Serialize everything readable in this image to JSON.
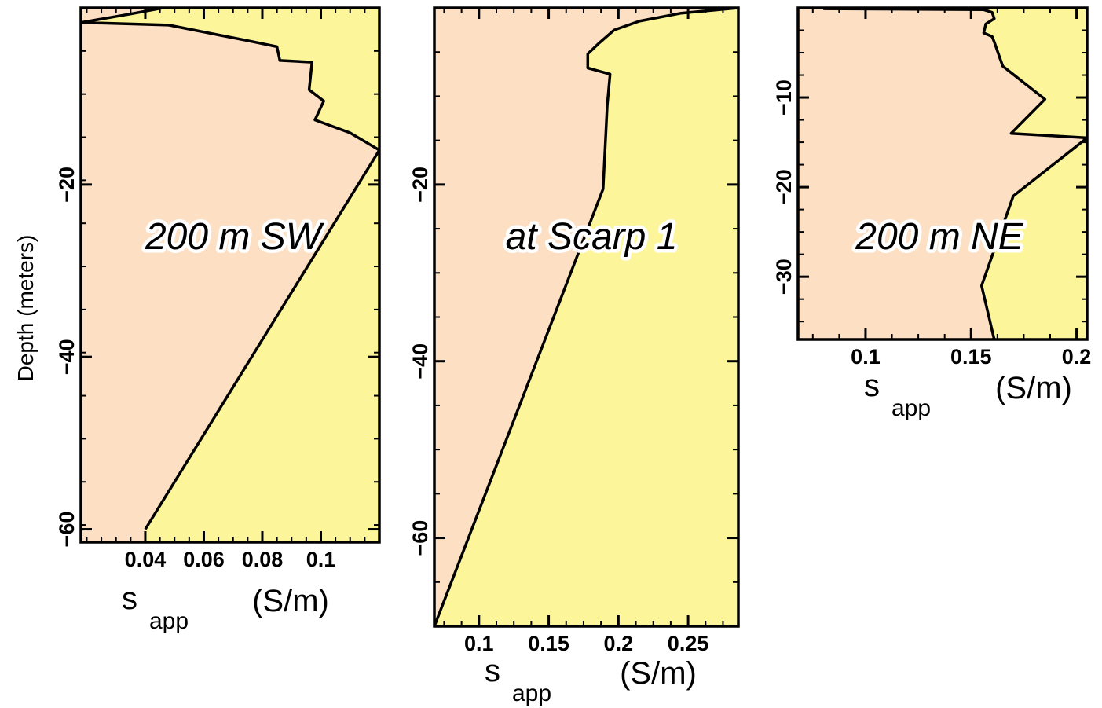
{
  "y_axis_label": "Depth (meters)",
  "colors": {
    "left_fill": "#fde0c4",
    "right_fill": "#fdf59a",
    "line": "#000000"
  },
  "chart_data": [
    {
      "type": "area",
      "title": "200 m SW",
      "xlabel_symbol": "s",
      "xlabel_subscript": "app",
      "xlabel_unit": "(S/m)",
      "ylabel": "Depth (meters)",
      "xlim": [
        0.018,
        0.12
      ],
      "ylim": [
        -61.5,
        0.5
      ],
      "xticks": [
        0.04,
        0.06,
        0.08,
        0.1
      ],
      "xtick_labels": [
        "0.04",
        "0.06",
        "0.08",
        "0.1"
      ],
      "yticks": [
        -20,
        -40,
        -60
      ],
      "ytick_labels": [
        "−20",
        "−40",
        "−60"
      ],
      "x": [
        0.04,
        0.12,
        0.11,
        0.098,
        0.101,
        0.096,
        0.097,
        0.086,
        0.085,
        0.075,
        0.066,
        0.048,
        0.018,
        0.035,
        0.046
      ],
      "y": [
        -60,
        -16,
        -14,
        -12.5,
        -10.3,
        -9,
        -5.8,
        -5.6,
        -4,
        -3.3,
        -2.7,
        -1.5,
        -1.2,
        -0.2,
        0.5
      ]
    },
    {
      "type": "area",
      "title": "at Scarp 1",
      "xlabel_symbol": "s",
      "xlabel_subscript": "app",
      "xlabel_unit": "(S/m)",
      "xlim": [
        0.068,
        0.286
      ],
      "ylim": [
        -70,
        0
      ],
      "xticks": [
        0.1,
        0.15,
        0.2,
        0.25
      ],
      "xtick_labels": [
        "0.1",
        "0.15",
        "0.2",
        "0.25"
      ],
      "yticks": [
        -20,
        -40,
        -60
      ],
      "ytick_labels": [
        "−20",
        "−40",
        "−60"
      ],
      "x": [
        0.068,
        0.189,
        0.192,
        0.194,
        0.178,
        0.178,
        0.186,
        0.197,
        0.215,
        0.245,
        0.286
      ],
      "y": [
        -70,
        -20.5,
        -11,
        -7.5,
        -6.8,
        -5.2,
        -4,
        -2.5,
        -1.5,
        -0.6,
        0
      ]
    },
    {
      "type": "area",
      "title": "200 m NE",
      "xlabel_symbol": "s",
      "xlabel_subscript": "app",
      "xlabel_unit": "(S/m)",
      "xlim": [
        0.068,
        0.205
      ],
      "ylim": [
        -37,
        0
      ],
      "xticks": [
        0.1,
        0.15,
        0.2
      ],
      "xtick_labels": [
        "0.1",
        "0.15",
        "0.2"
      ],
      "yticks": [
        -10,
        -20,
        -30
      ],
      "ytick_labels": [
        "−10",
        "−20",
        "−30"
      ],
      "x": [
        0.161,
        0.155,
        0.17,
        0.205,
        0.169,
        0.185,
        0.165,
        0.161,
        0.16,
        0.156,
        0.157,
        0.161,
        0.16,
        0.156,
        0.08
      ],
      "y": [
        -37,
        -31,
        -21,
        -14.5,
        -14,
        -10.2,
        -6.5,
        -3.8,
        -3.2,
        -2.8,
        -1.8,
        -1.2,
        -0.5,
        -0.2,
        -0.1
      ]
    }
  ]
}
